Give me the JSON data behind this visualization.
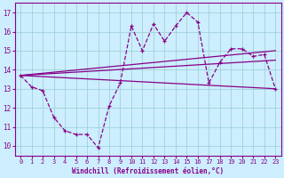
{
  "xlabel": "Windchill (Refroidissement éolien,°C)",
  "bg_color": "#cceeff",
  "grid_color": "#99cccc",
  "line_color": "#880088",
  "x_ticks": [
    0,
    1,
    2,
    3,
    4,
    5,
    6,
    7,
    8,
    9,
    10,
    11,
    12,
    13,
    14,
    15,
    16,
    17,
    18,
    19,
    20,
    21,
    22,
    23
  ],
  "y_ticks": [
    10,
    11,
    12,
    13,
    14,
    15,
    16,
    17
  ],
  "ylim": [
    9.5,
    17.5
  ],
  "xlim": [
    -0.5,
    23.5
  ],
  "jagged_y": [
    13.7,
    13.1,
    12.9,
    11.5,
    10.8,
    10.6,
    10.6,
    9.9,
    12.1,
    13.3,
    16.3,
    15.0,
    16.4,
    15.5,
    16.3,
    17.0,
    16.5,
    13.3,
    14.4,
    15.1,
    15.1,
    14.7,
    14.8,
    13.0
  ],
  "line_bottom_start": 13.7,
  "line_bottom_end": 13.0,
  "line_mid_start": 13.7,
  "line_mid_end": 14.5,
  "line_top_start": 13.7,
  "line_top_end": 15.0
}
